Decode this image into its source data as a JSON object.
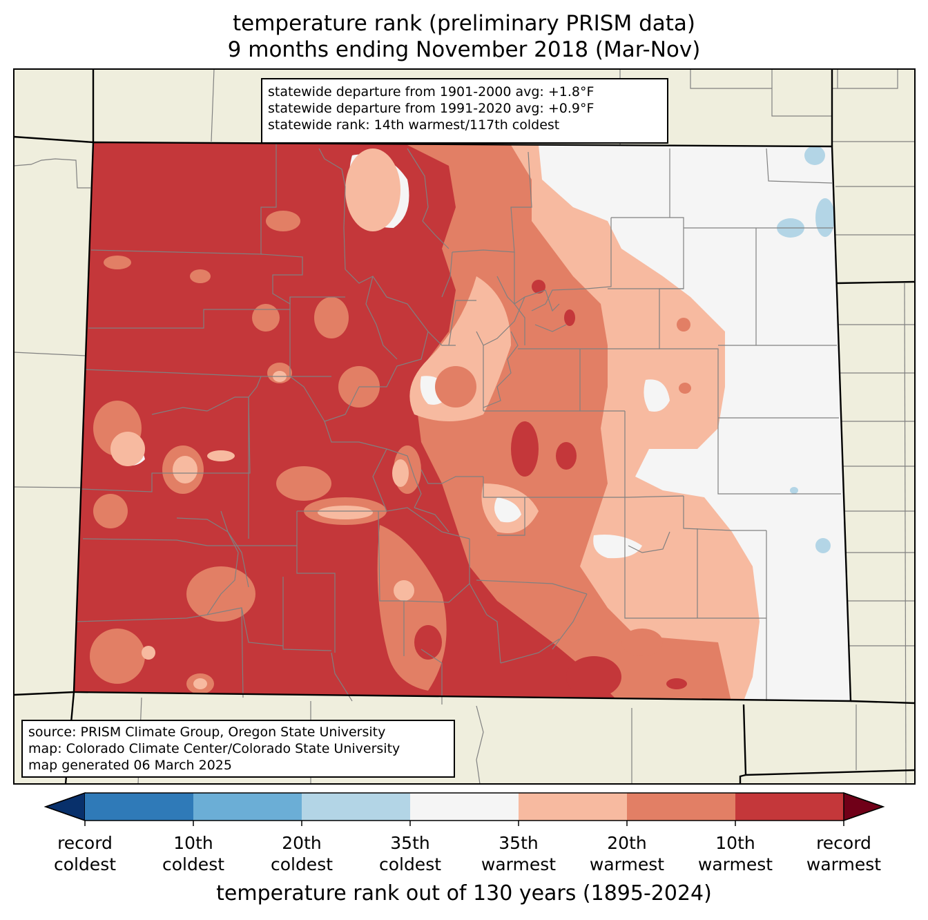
{
  "title": {
    "line1": "temperature rank (preliminary PRISM data)",
    "line2": "9 months ending November 2018 (Mar-Nov)"
  },
  "stats": {
    "line1": "statewide departure from 1901-2000 avg: +1.8°F",
    "line2": "statewide departure from 1991-2020 avg: +0.9°F",
    "line3": "statewide rank: 14th warmest/117th coldest"
  },
  "source": {
    "line1": "source: PRISM Climate Group, Oregon State University",
    "line2": "map: Colorado Climate Center/Colorado State University",
    "line3": "map generated 06 March 2025"
  },
  "colorbar": {
    "title": "temperature rank out of 130 years (1895-2024)",
    "labels": [
      {
        "top": "record",
        "bottom": "coldest"
      },
      {
        "top": "10th",
        "bottom": "coldest"
      },
      {
        "top": "20th",
        "bottom": "coldest"
      },
      {
        "top": "35th",
        "bottom": "coldest"
      },
      {
        "top": "35th",
        "bottom": "warmest"
      },
      {
        "top": "20th",
        "bottom": "warmest"
      },
      {
        "top": "10th",
        "bottom": "warmest"
      },
      {
        "top": "record",
        "bottom": "warmest"
      }
    ],
    "colors": {
      "record_coldest_arrow": "#08306b",
      "bin1": "#2f7ab8",
      "bin2": "#6baed6",
      "bin3": "#b3d5e6",
      "bin4": "#f5f5f5",
      "bin5": "#f7baa0",
      "bin6": "#e27f65",
      "bin7": "#c4373a",
      "record_warmest_arrow": "#700018"
    }
  },
  "map_colors": {
    "land": "#efeedd",
    "state_line": "#000000",
    "county_line": "#808080"
  }
}
